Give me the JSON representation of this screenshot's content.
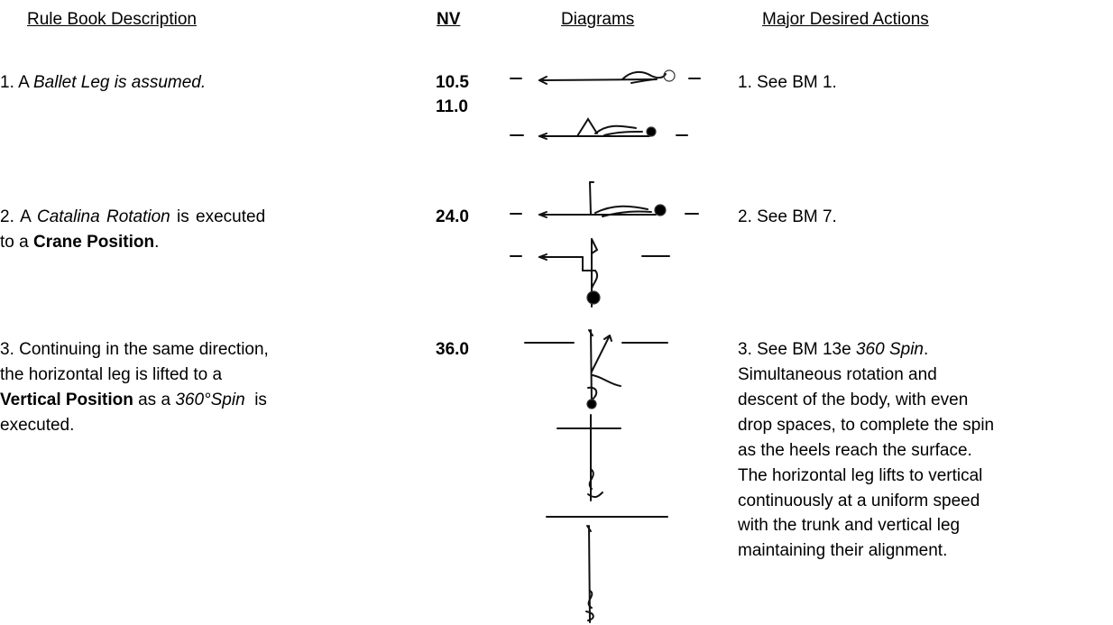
{
  "header": {
    "columns": [
      "Rule Book Description",
      "NV",
      "Diagrams",
      "Major Desired Actions"
    ]
  },
  "rows": [
    {
      "description": [
        [
          "1. A ",
          "Ballet Leg is assumed."
        ]
      ],
      "nv": [
        "10.5",
        "11.0"
      ],
      "actions": [
        [
          "1. See BM 1."
        ]
      ]
    },
    {
      "description": [
        [
          "2. A ",
          "Catalina Rotation",
          " is executed"
        ],
        [
          "to a ",
          "Crane Position",
          "."
        ]
      ],
      "nv": [
        "24.0"
      ],
      "actions": [
        [
          "2. See BM 7."
        ]
      ]
    },
    {
      "description": [
        [
          "3. Continuing in the same direction,"
        ],
        [
          "the horizontal leg is lifted to a"
        ],
        [
          "Vertical Position",
          " as a ",
          "360°Spin",
          "  is"
        ],
        [
          "executed."
        ]
      ],
      "nv": [
        "36.0"
      ],
      "actions": [
        [
          "3. See BM 13e ",
          "360 Spin",
          "."
        ],
        [
          "Simultaneous rotation and"
        ],
        [
          "descent of the body, with even"
        ],
        [
          "drop spaces, to complete the spin"
        ],
        [
          "as the heels reach the surface."
        ],
        [
          "The horizontal leg lifts to vertical"
        ],
        [
          "continuously at a uniform speed"
        ],
        [
          "with the trunk and vertical leg"
        ],
        [
          "maintaining their alignment."
        ]
      ]
    }
  ]
}
